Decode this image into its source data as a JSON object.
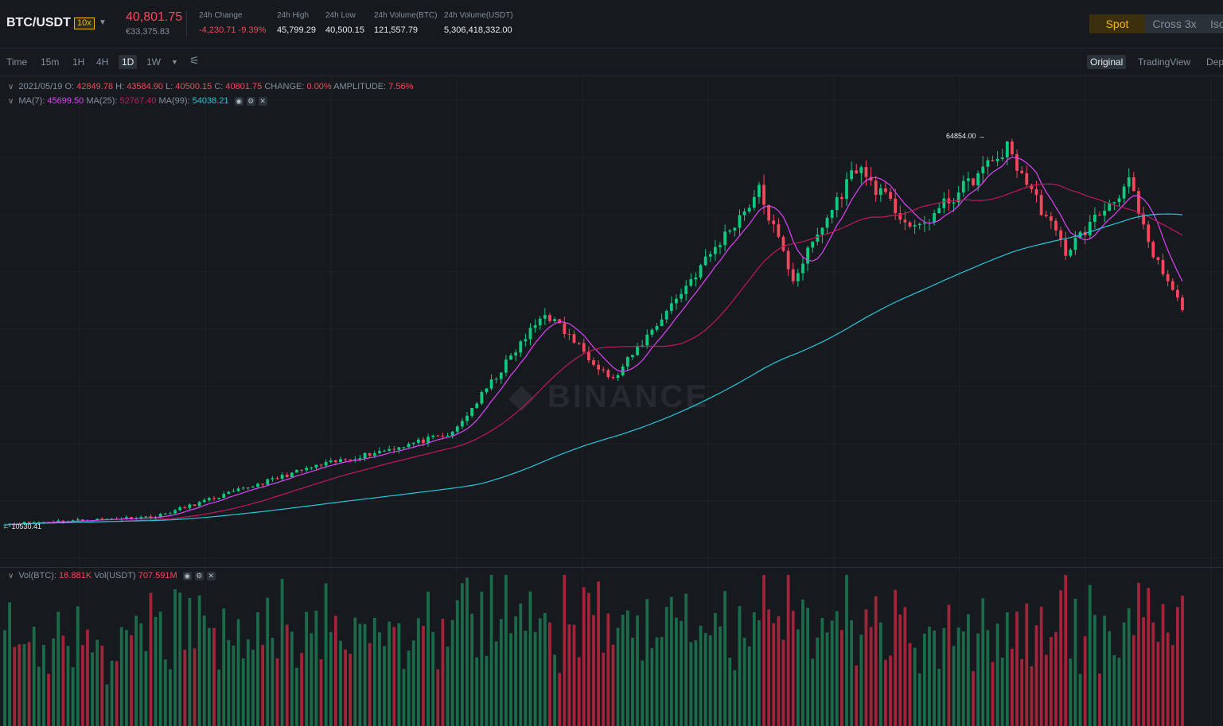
{
  "header": {
    "pair": "BTC/USDT",
    "leverage": "10x",
    "last_price": "40,801.75",
    "fiat_price": "€33,375.83",
    "stats": [
      {
        "label": "24h Change",
        "value": "-4,230.71 -9.39%",
        "red": true
      },
      {
        "label": "24h High",
        "value": "45,799.29"
      },
      {
        "label": "24h Low",
        "value": "40,500.15"
      },
      {
        "label": "24h Volume(BTC)",
        "value": "121,557.79"
      },
      {
        "label": "24h Volume(USDT)",
        "value": "5,306,418,332.00"
      }
    ],
    "modes": [
      "Spot",
      "Cross 3x",
      "Iso"
    ]
  },
  "toolbar": {
    "intervals": [
      "Time",
      "15m",
      "1H",
      "4H",
      "1D",
      "1W"
    ],
    "active_interval": "1D",
    "views": [
      "Original",
      "TradingView",
      "Depth"
    ]
  },
  "ohlc": {
    "date": "2021/05/19",
    "o_label": "O:",
    "o": "42849.78",
    "h_label": "H:",
    "h": "43584.90",
    "l_label": "L:",
    "l": "40500.15",
    "c_label": "C:",
    "c": "40801.75",
    "change_label": "CHANGE:",
    "change": "0.00%",
    "amp_label": "AMPLITUDE:",
    "amp": "7.56%"
  },
  "ma": {
    "ma7_label": "MA(7):",
    "ma7": "45699.50",
    "ma25_label": "MA(25):",
    "ma25": "52767.40",
    "ma99_label": "MA(99):",
    "ma99": "54038.21"
  },
  "volume": {
    "btc_label": "Vol(BTC):",
    "btc": "16.881K",
    "usdt_label": "Vol(USDT)",
    "usdt": "707.591M"
  },
  "markers": {
    "high": "64854.00",
    "low": "10530.41"
  },
  "watermark": "BINANCE",
  "colors": {
    "up": "#0ecb81",
    "down": "#f6465d",
    "ma7": "#e040fb",
    "ma25": "#c2185b",
    "ma99": "#26c6da",
    "accent": "#f0b90b"
  },
  "chart_data": {
    "type": "candlestick",
    "interval": "1D",
    "x_start": "2020/09/19",
    "x_end": "2021/05/19",
    "high_marker": 64854.0,
    "low_marker": 10530.41,
    "close_anchors": [
      {
        "date": "2020/09/19",
        "close": 10900
      },
      {
        "date": "2020/10/20",
        "close": 11900
      },
      {
        "date": "2020/11/20",
        "close": 18600
      },
      {
        "date": "2020/12/20",
        "close": 23500
      },
      {
        "date": "2021/01/08",
        "close": 40500
      },
      {
        "date": "2021/01/22",
        "close": 31000
      },
      {
        "date": "2021/02/08",
        "close": 46000
      },
      {
        "date": "2021/02/21",
        "close": 57500
      },
      {
        "date": "2021/02/28",
        "close": 45200
      },
      {
        "date": "2021/03/13",
        "close": 61000
      },
      {
        "date": "2021/03/25",
        "close": 51800
      },
      {
        "date": "2021/04/13",
        "close": 63500
      },
      {
        "date": "2021/04/25",
        "close": 49000
      },
      {
        "date": "2021/05/08",
        "close": 58800
      },
      {
        "date": "2021/05/12",
        "close": 49700
      },
      {
        "date": "2021/05/19",
        "close": 40801.75
      }
    ]
  }
}
